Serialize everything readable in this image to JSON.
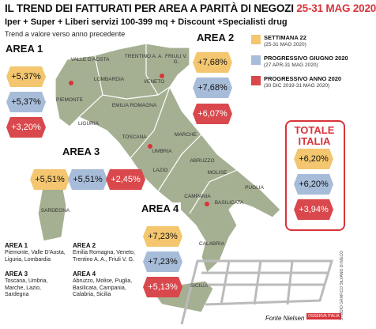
{
  "header": {
    "title": "IL TREND DEI FATTURATI PER AREA A PARITÀ DI NEGOZI",
    "title_date": "25-31 MAG 2020",
    "subtitle": "Iper + Super + Liberi servizi 100-399 mq + Discount +Specialisti drug",
    "note": "Trend a valore verso anno precedente"
  },
  "legend": [
    {
      "label": "SETTIMANA 22",
      "period": "(25-31 MAG 2020)"
    },
    {
      "label": "PROGRESSIVO GIUGNO 2020",
      "period": "(27 APR-31 MAG 2020)"
    },
    {
      "label": "PROGRESSIVO ANNO 2020",
      "period": "(30 DIC 2019-31 MAG 2020)"
    }
  ],
  "areas": [
    {
      "name": "AREA 1",
      "values": [
        "+5,37%",
        "+5,37%",
        "+3,20%"
      ]
    },
    {
      "name": "AREA 2",
      "values": [
        "+7,68%",
        "+7,68%",
        "+6,07%"
      ]
    },
    {
      "name": "AREA 3",
      "values": [
        "+5,51%",
        "+5,51%",
        "+2,45%"
      ]
    },
    {
      "name": "AREA 4",
      "values": [
        "+7,23%",
        "+7,23%",
        "+5,13%"
      ]
    }
  ],
  "total": {
    "title": "TOTALE ITALIA",
    "values": [
      "+6,20%",
      "+6,20%",
      "+3,94%"
    ]
  },
  "regions": [
    "VALLE D'AOSTA",
    "LOMBARDIA",
    "TRENTINO A. A.",
    "FRIULI V. G.",
    "VENETO",
    "PIEMONTE",
    "EMILIA ROMAGNA",
    "LIGURIA",
    "TOSCANA",
    "UMBRIA",
    "MARCHE",
    "LAZIO",
    "ABRUZZO",
    "MOLISE",
    "SARDEGNA",
    "PUGLIA",
    "CAMPANIA",
    "BASILICATA",
    "CALABRIA",
    "SICILIA"
  ],
  "area_lists": [
    {
      "name": "AREA 1",
      "regions": "Piemonte, Valle D'Aosta, Liguria, Lombardia"
    },
    {
      "name": "AREA 2",
      "regions": "Emilia Romagna, Veneto, Trentino A. A., Friuli V. G."
    },
    {
      "name": "AREA 3",
      "regions": "Toscana, Umbria, Marche, Lazio, Sardegna"
    },
    {
      "name": "AREA 4",
      "regions": "Abruzzo, Molise, Puglia, Basilicata, Campania, Calabria, Sicilia"
    }
  ],
  "source": "Fonte Nielsen",
  "credit": "STUDIO GRAFICO SILVANO DI MECO",
  "logo": "OSSERVA ITALIA"
}
